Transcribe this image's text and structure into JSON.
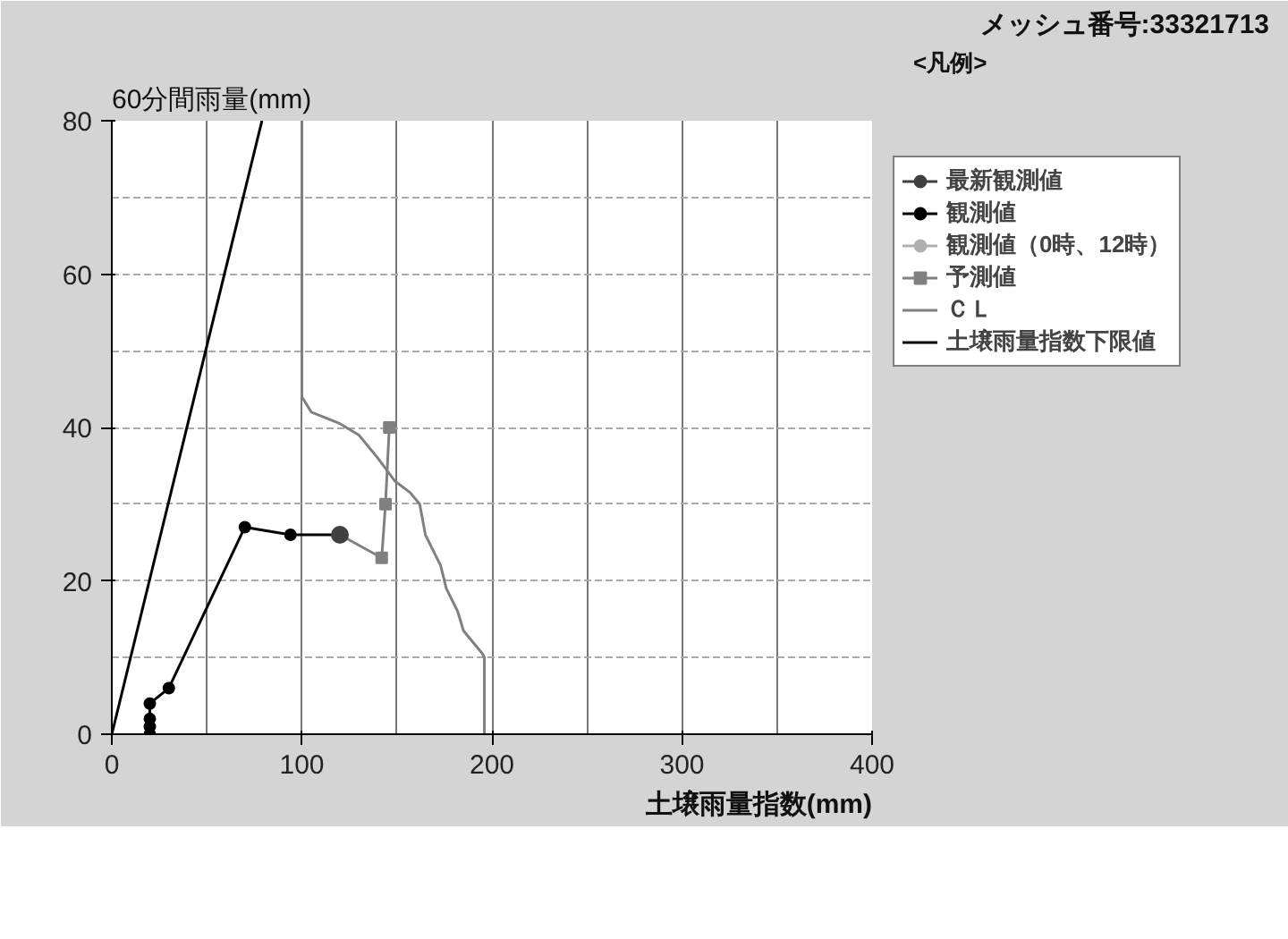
{
  "chart_data": {
    "type": "line",
    "title": "メッシュ番号:33321713",
    "legend_title": "<凡例>",
    "xlabel": "土壌雨量指数(mm)",
    "ylabel": "60分間雨量(mm)",
    "xlim": [
      0,
      400
    ],
    "ylim": [
      0,
      80
    ],
    "xticks": [
      0,
      100,
      200,
      300,
      400
    ],
    "yticks": [
      0,
      20,
      40,
      60,
      80
    ],
    "grid": true,
    "legend": "top right",
    "series": [
      {
        "name": "最新観測値",
        "type": "line",
        "marker": "circle",
        "color": "#404040",
        "x": [
          120
        ],
        "values": [
          26
        ]
      },
      {
        "name": "観測値",
        "type": "line",
        "marker": "circle",
        "color": "#000000",
        "x": [
          20,
          20,
          20,
          20,
          30,
          70,
          94,
          120
        ],
        "values": [
          0,
          1,
          2,
          4,
          6,
          27,
          26,
          26
        ]
      },
      {
        "name": "観測値（0時、12時）",
        "type": "line",
        "marker": "circle",
        "color": "#b0b0b0"
      },
      {
        "name": "予測値",
        "type": "line",
        "marker": "square",
        "color": "#808080",
        "x": [
          120,
          142,
          144,
          146
        ],
        "values": [
          26,
          23,
          30,
          40
        ]
      },
      {
        "name": "ＣＬ",
        "type": "line",
        "marker": "none",
        "color": "#808080",
        "x": [
          100,
          100,
          105,
          120,
          130,
          140,
          149,
          157,
          162,
          165,
          173,
          176,
          182,
          185,
          195,
          196,
          196
        ],
        "values": [
          80,
          44,
          42,
          40.5,
          39,
          36,
          33,
          31.5,
          30,
          26,
          22,
          19,
          16,
          13.5,
          10.5,
          10,
          0
        ]
      },
      {
        "name": "土壌雨量指数下限値",
        "type": "line",
        "marker": "none",
        "color": "#000000",
        "x": [
          0,
          79
        ],
        "values": [
          0,
          80
        ]
      }
    ]
  }
}
